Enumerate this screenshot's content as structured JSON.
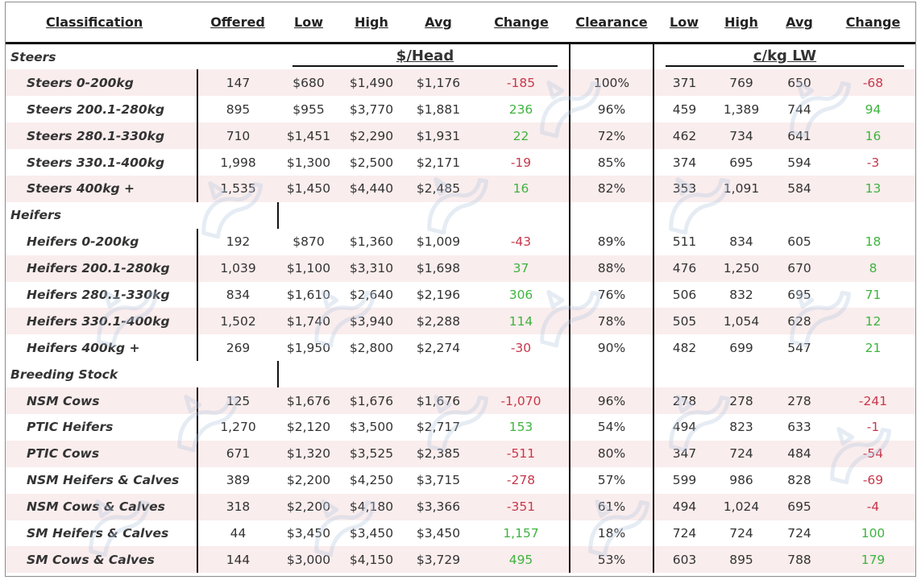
{
  "headers": {
    "classification": "Classification",
    "offered": "Offered",
    "low": "Low",
    "high": "High",
    "avg": "Avg",
    "change": "Change",
    "clearance": "Clearance",
    "low2": "Low",
    "high2": "High",
    "avg2": "Avg",
    "change2": "Change"
  },
  "units": {
    "head": "$/Head",
    "kg": "c/kg LW"
  },
  "sections": [
    {
      "title": "Steers",
      "rows": [
        {
          "name": "Steers 0-200kg",
          "offered": "147",
          "low": "$680",
          "high": "$1,490",
          "avg": "$1,176",
          "change": "-185",
          "clearance": "100%",
          "low2": "371",
          "high2": "769",
          "avg2": "650",
          "change2": "-68"
        },
        {
          "name": "Steers 200.1-280kg",
          "offered": "895",
          "low": "$955",
          "high": "$3,770",
          "avg": "$1,881",
          "change": "236",
          "clearance": "96%",
          "low2": "459",
          "high2": "1,389",
          "avg2": "744",
          "change2": "94"
        },
        {
          "name": "Steers 280.1-330kg",
          "offered": "710",
          "low": "$1,451",
          "high": "$2,290",
          "avg": "$1,931",
          "change": "22",
          "clearance": "72%",
          "low2": "462",
          "high2": "734",
          "avg2": "641",
          "change2": "16"
        },
        {
          "name": "Steers 330.1-400kg",
          "offered": "1,998",
          "low": "$1,300",
          "high": "$2,500",
          "avg": "$2,171",
          "change": "-19",
          "clearance": "85%",
          "low2": "374",
          "high2": "695",
          "avg2": "594",
          "change2": "-3"
        },
        {
          "name": "Steers 400kg +",
          "offered": "1,535",
          "low": "$1,450",
          "high": "$4,440",
          "avg": "$2,485",
          "change": "16",
          "clearance": "82%",
          "low2": "353",
          "high2": "1,091",
          "avg2": "584",
          "change2": "13"
        }
      ]
    },
    {
      "title": "Heifers",
      "rows": [
        {
          "name": "Heifers 0-200kg",
          "offered": "192",
          "low": "$870",
          "high": "$1,360",
          "avg": "$1,009",
          "change": "-43",
          "clearance": "89%",
          "low2": "511",
          "high2": "834",
          "avg2": "605",
          "change2": "18"
        },
        {
          "name": "Heifers 200.1-280kg",
          "offered": "1,039",
          "low": "$1,100",
          "high": "$3,310",
          "avg": "$1,698",
          "change": "37",
          "clearance": "88%",
          "low2": "476",
          "high2": "1,250",
          "avg2": "670",
          "change2": "8"
        },
        {
          "name": "Heifers 280.1-330kg",
          "offered": "834",
          "low": "$1,610",
          "high": "$2,640",
          "avg": "$2,196",
          "change": "306",
          "clearance": "76%",
          "low2": "506",
          "high2": "832",
          "avg2": "695",
          "change2": "71"
        },
        {
          "name": "Heifers 330.1-400kg",
          "offered": "1,502",
          "low": "$1,740",
          "high": "$3,940",
          "avg": "$2,288",
          "change": "114",
          "clearance": "78%",
          "low2": "505",
          "high2": "1,054",
          "avg2": "628",
          "change2": "12"
        },
        {
          "name": "Heifers 400kg +",
          "offered": "269",
          "low": "$1,950",
          "high": "$2,800",
          "avg": "$2,274",
          "change": "-30",
          "clearance": "90%",
          "low2": "482",
          "high2": "699",
          "avg2": "547",
          "change2": "21"
        }
      ]
    },
    {
      "title": "Breeding Stock",
      "rows": [
        {
          "name": "NSM Cows",
          "offered": "125",
          "low": "$1,676",
          "high": "$1,676",
          "avg": "$1,676",
          "change": "-1,070",
          "clearance": "96%",
          "low2": "278",
          "high2": "278",
          "avg2": "278",
          "change2": "-241"
        },
        {
          "name": "PTIC Heifers",
          "offered": "1,270",
          "low": "$2,120",
          "high": "$3,500",
          "avg": "$2,717",
          "change": "153",
          "clearance": "54%",
          "low2": "494",
          "high2": "823",
          "avg2": "633",
          "change2": "-1"
        },
        {
          "name": "PTIC Cows",
          "offered": "671",
          "low": "$1,320",
          "high": "$3,525",
          "avg": "$2,385",
          "change": "-511",
          "clearance": "80%",
          "low2": "347",
          "high2": "724",
          "avg2": "484",
          "change2": "-54"
        },
        {
          "name": "NSM Heifers & Calves",
          "offered": "389",
          "low": "$2,200",
          "high": "$4,250",
          "avg": "$3,715",
          "change": "-278",
          "clearance": "57%",
          "low2": "599",
          "high2": "986",
          "avg2": "828",
          "change2": "-69"
        },
        {
          "name": "NSM Cows & Calves",
          "offered": "318",
          "low": "$2,200",
          "high": "$4,180",
          "avg": "$3,366",
          "change": "-351",
          "clearance": "61%",
          "low2": "494",
          "high2": "1,024",
          "avg2": "695",
          "change2": "-4"
        },
        {
          "name": "SM Heifers & Calves",
          "offered": "44",
          "low": "$3,450",
          "high": "$3,450",
          "avg": "$3,450",
          "change": "1,157",
          "clearance": "18%",
          "low2": "724",
          "high2": "724",
          "avg2": "724",
          "change2": "100"
        },
        {
          "name": "SM Cows & Calves",
          "offered": "144",
          "low": "$3,000",
          "high": "$4,150",
          "avg": "$3,729",
          "change": "495",
          "clearance": "53%",
          "low2": "603",
          "high2": "895",
          "avg2": "788",
          "change2": "179"
        }
      ]
    }
  ],
  "colors": {
    "negative": "#c8374a",
    "positive": "#3fb33f",
    "stripe": "#f5dede",
    "watermark": "#b8c9e0"
  },
  "watermark_icon": "cattle-logo-icon"
}
